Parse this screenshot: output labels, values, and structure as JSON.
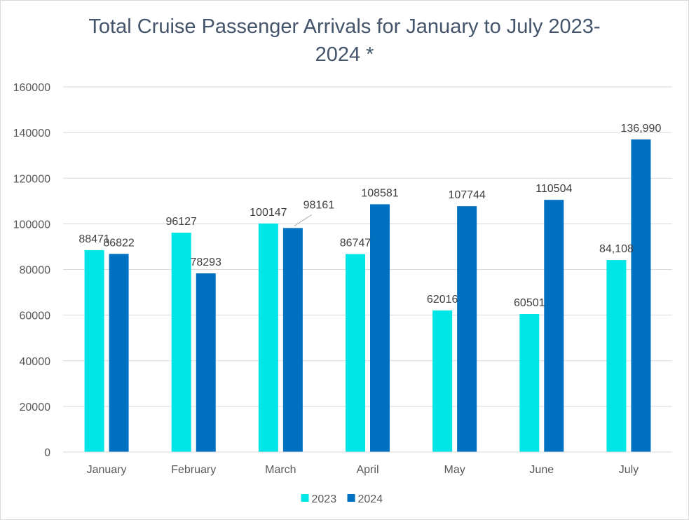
{
  "chart_data": {
    "type": "bar",
    "title_lines": [
      "Total Cruise Passenger Arrivals for January to July 2023-",
      "2024 *"
    ],
    "categories": [
      "January",
      "February",
      "March",
      "April",
      "May",
      "June",
      "July"
    ],
    "series": [
      {
        "name": "2023",
        "color": "#00e5e5",
        "values": [
          88471,
          96127,
          100147,
          86747,
          62016,
          60501,
          84108
        ],
        "labels": [
          "88471",
          "96127",
          "100147",
          "86747",
          "62016",
          "60501",
          "84,108"
        ]
      },
      {
        "name": "2024",
        "color": "#0070c0",
        "values": [
          86822,
          78293,
          98161,
          108581,
          107744,
          110504,
          136990
        ],
        "labels": [
          "86822",
          "78293",
          "98161",
          "108581",
          "107744",
          "110504",
          "136,990"
        ]
      }
    ],
    "ylim": [
      0,
      160000
    ],
    "yticks": [
      "0",
      "20000",
      "40000",
      "60000",
      "80000",
      "100000",
      "120000",
      "140000",
      "160000"
    ],
    "grid": true,
    "legend_position": "bottom",
    "xlabel": "",
    "ylabel": ""
  }
}
